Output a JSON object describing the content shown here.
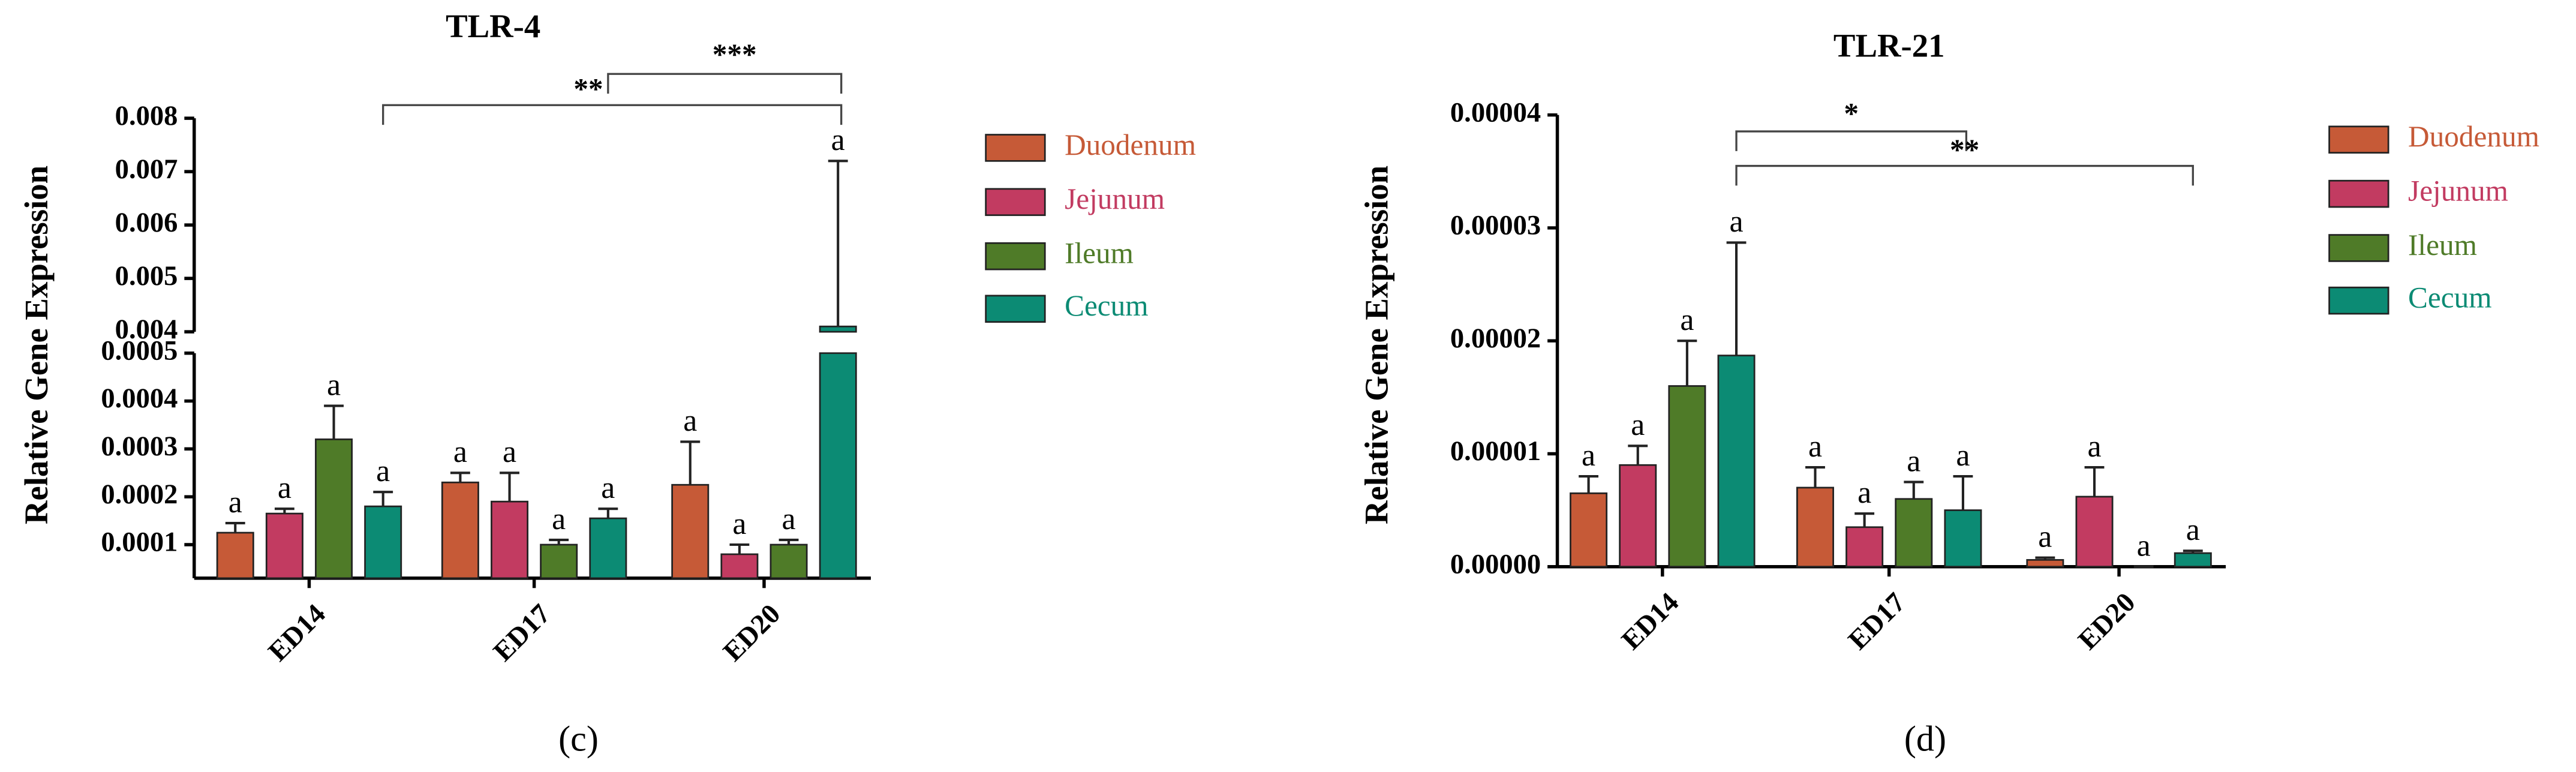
{
  "chart_data": [
    {
      "type": "bar",
      "title": "TLR-4",
      "y_label": "Relative Gene Expression",
      "caption": "(c)",
      "categories": [
        "ED14",
        "ED17",
        "ED20"
      ],
      "y_segments": [
        {
          "ylim": [
            3e-05,
            0.0005
          ],
          "yticks": [
            0.0001,
            0.0002,
            0.0003,
            0.0004,
            0.0005
          ]
        },
        {
          "ylim": [
            0.004,
            0.008
          ],
          "yticks": [
            0.004,
            0.005,
            0.006,
            0.007,
            0.008
          ]
        }
      ],
      "series": [
        {
          "name": "Duodenum",
          "color": "#c65a37",
          "values": [
            0.000125,
            0.00023,
            0.000225
          ],
          "errors": [
            2e-05,
            2e-05,
            9e-05
          ],
          "letters": [
            "a",
            "a",
            "a"
          ]
        },
        {
          "name": "Jejunum",
          "color": "#c23b61",
          "values": [
            0.000165,
            0.00019,
            8e-05
          ],
          "errors": [
            1e-05,
            6e-05,
            2e-05
          ],
          "letters": [
            "a",
            "a",
            "a"
          ]
        },
        {
          "name": "Ileum",
          "color": "#4f7b28",
          "values": [
            0.00032,
            0.0001,
            0.0001
          ],
          "errors": [
            7e-05,
            1e-05,
            1e-05
          ],
          "letters": [
            "a",
            "a",
            "a"
          ]
        },
        {
          "name": "Cecum",
          "color": "#0c8b74",
          "values": [
            0.00018,
            0.000155,
            0.0041
          ],
          "errors": [
            3e-05,
            2e-05,
            0.0031
          ],
          "letters": [
            "a",
            "a",
            "a"
          ]
        }
      ],
      "annotations": [
        "**",
        "***"
      ]
    },
    {
      "type": "bar",
      "title": "TLR-21",
      "y_label": "Relative Gene Expression",
      "caption": "(d)",
      "categories": [
        "ED14",
        "ED17",
        "ED20"
      ],
      "ylim": [
        0,
        4e-05
      ],
      "yticks": [
        {
          "value": 0,
          "label": "0.00000"
        },
        1e-05,
        2e-05,
        3e-05,
        4e-05
      ],
      "series": [
        {
          "name": "Duodenum",
          "color": "#c65a37",
          "values": [
            6.5e-06,
            7e-06,
            6e-07
          ],
          "errors": [
            1.5e-06,
            1.8e-06,
            2e-07
          ],
          "letters": [
            "a",
            "a",
            "a"
          ]
        },
        {
          "name": "Jejunum",
          "color": "#c23b61",
          "values": [
            9e-06,
            3.5e-06,
            6.2e-06
          ],
          "errors": [
            1.7e-06,
            1.2e-06,
            2.6e-06
          ],
          "letters": [
            "a",
            "a",
            "a"
          ]
        },
        {
          "name": "Ileum",
          "color": "#4f7b28",
          "values": [
            1.6e-05,
            6e-06,
            0
          ],
          "errors": [
            4e-06,
            1.5e-06,
            0
          ],
          "letters": [
            "a",
            "a",
            "a"
          ]
        },
        {
          "name": "Cecum",
          "color": "#0c8b74",
          "values": [
            1.87e-05,
            5e-06,
            1.2e-06
          ],
          "errors": [
            1e-05,
            3e-06,
            2e-07
          ],
          "letters": [
            "a",
            "a",
            "a"
          ]
        }
      ],
      "annotations": [
        "*",
        "**"
      ]
    }
  ]
}
